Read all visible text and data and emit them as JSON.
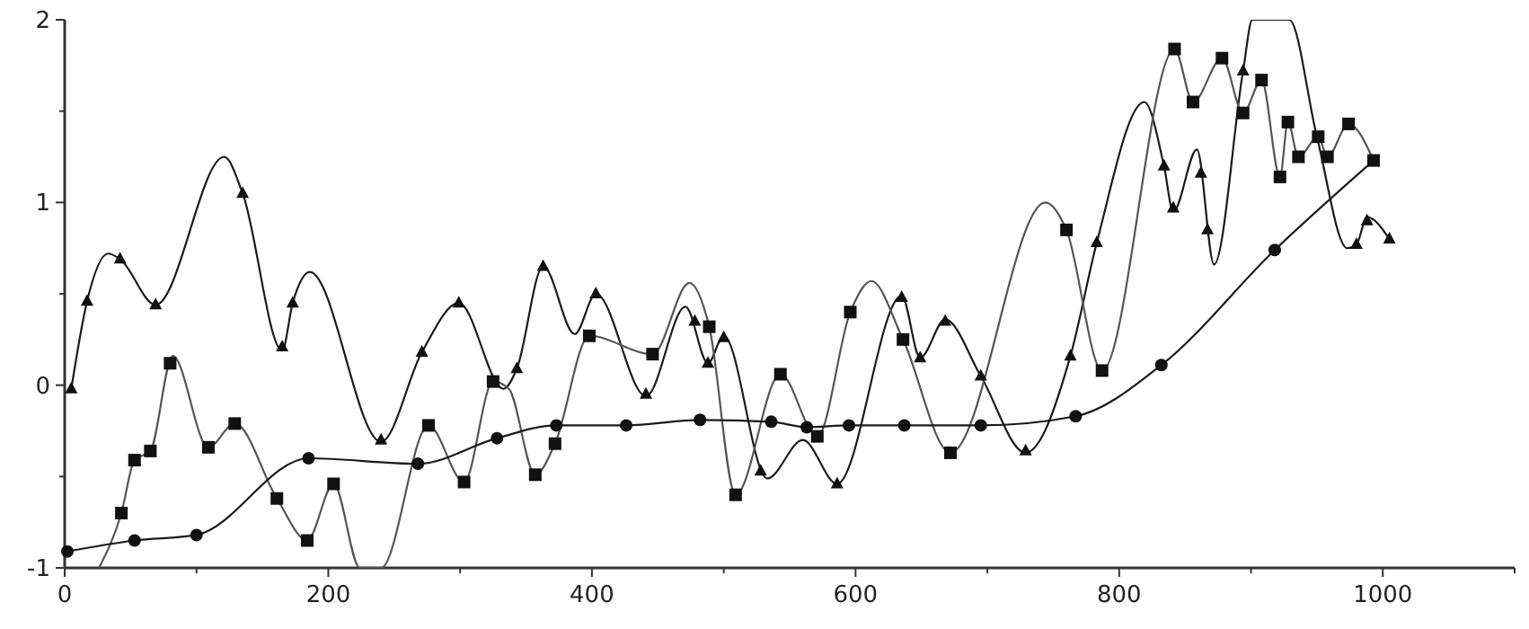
{
  "chart_data": {
    "type": "line",
    "xlim": [
      0,
      1100
    ],
    "ylim": [
      -1,
      2
    ],
    "xticks": [
      0,
      {
        "value": 100,
        "label": null
      },
      200,
      {
        "value": 300,
        "label": null
      },
      400,
      {
        "value": 500,
        "label": null
      },
      600,
      {
        "value": 700,
        "label": null
      },
      800,
      {
        "value": 900,
        "label": null
      },
      1000,
      {
        "value": 1100,
        "label": null
      }
    ],
    "yticks": [
      -1,
      {
        "value": -0.5,
        "label": null
      },
      0,
      {
        "value": 0.5,
        "label": null
      },
      1,
      {
        "value": 1.5,
        "label": null
      },
      2
    ],
    "grid": false,
    "series": [
      {
        "color": "#1a1a1a",
        "marker": "none",
        "x": [
          5,
          17,
          33,
          42,
          69,
          121,
          135,
          165,
          173,
          186,
          240,
          271,
          299,
          333,
          343,
          363,
          387,
          403,
          441,
          471,
          488,
          500,
          533,
          560,
          586,
          635,
          649,
          668,
          695,
          729,
          763,
          783,
          819,
          834,
          841,
          859,
          872,
          894,
          901,
          914,
          929,
          950,
          973,
          980,
          988,
          1005
        ],
        "values": [
          -0.02,
          0.46,
          0.72,
          0.69,
          0.44,
          1.25,
          1.05,
          0.19,
          0.45,
          0.62,
          -0.31,
          0.18,
          0.45,
          -0.02,
          0.09,
          0.65,
          0.28,
          0.5,
          -0.06,
          0.43,
          0.12,
          0.27,
          -0.51,
          -0.3,
          -0.54,
          0.49,
          0.15,
          0.36,
          0.05,
          -0.37,
          0.16,
          0.78,
          1.55,
          1.2,
          0.95,
          1.29,
          0.66,
          1.72,
          2,
          2,
          2,
          1.36,
          0.75,
          0.77,
          0.92,
          0.8
        ]
      },
      {
        "color": "#555555",
        "marker": "none",
        "x": [
          26,
          43,
          53,
          65,
          82,
          109,
          129,
          161,
          184,
          204,
          224,
          240,
          276,
          303,
          325,
          337,
          357,
          372,
          398,
          446,
          474,
          489,
          509,
          543,
          571,
          596,
          612,
          636,
          672,
          744,
          760,
          787,
          842,
          856,
          878,
          894,
          908,
          922,
          928,
          936,
          951,
          958,
          974,
          993
        ],
        "values": [
          -1,
          -0.7,
          -0.41,
          -0.36,
          0.16,
          -0.34,
          -0.21,
          -0.62,
          -0.85,
          -0.54,
          -1,
          -1,
          -0.22,
          -0.53,
          0.02,
          -0.02,
          -0.49,
          -0.32,
          0.27,
          0.17,
          0.56,
          0.32,
          -0.6,
          0.06,
          -0.28,
          0.4,
          0.57,
          0.25,
          -0.37,
          1.0,
          0.85,
          0.08,
          1.84,
          1.55,
          1.79,
          1.49,
          1.67,
          1.14,
          1.44,
          1.25,
          1.36,
          1.25,
          1.43,
          1.23
        ]
      },
      {
        "color": "#1a1a1a",
        "marker": "none",
        "x": [
          2,
          53,
          100,
          185,
          268,
          328,
          373,
          426,
          482,
          536,
          563,
          595,
          637,
          695,
          767,
          832,
          918,
          993
        ],
        "values": [
          -0.91,
          -0.85,
          -0.82,
          -0.4,
          -0.43,
          -0.29,
          -0.22,
          -0.22,
          -0.19,
          -0.2,
          -0.23,
          -0.22,
          -0.22,
          -0.22,
          -0.17,
          0.11,
          0.74,
          1.23
        ]
      },
      {
        "type": "scatter",
        "color": "#111111",
        "marker": "triangle",
        "x": [
          5,
          17,
          42,
          69,
          135,
          165,
          173,
          240,
          271,
          299,
          343,
          363,
          403,
          441,
          478,
          488,
          500,
          528,
          586,
          635,
          649,
          668,
          695,
          729,
          763,
          783,
          834,
          841,
          862,
          867,
          894,
          980,
          988,
          1005
        ],
        "values": [
          -0.02,
          0.46,
          0.69,
          0.44,
          1.05,
          0.21,
          0.45,
          -0.3,
          0.18,
          0.45,
          0.09,
          0.65,
          0.5,
          -0.05,
          0.35,
          0.12,
          0.26,
          -0.47,
          -0.54,
          0.48,
          0.15,
          0.35,
          0.05,
          -0.36,
          0.16,
          0.78,
          1.2,
          0.97,
          1.16,
          0.85,
          1.72,
          0.77,
          0.9,
          0.8
        ]
      },
      {
        "type": "scatter",
        "color": "#111111",
        "marker": "square",
        "x": [
          43,
          53,
          65,
          80,
          109,
          129,
          161,
          184,
          204,
          276,
          303,
          325,
          357,
          372,
          398,
          446,
          489,
          509,
          543,
          571,
          596,
          636,
          672,
          760,
          787,
          842,
          856,
          878,
          894,
          908,
          922,
          928,
          936,
          951,
          958,
          974,
          993
        ],
        "values": [
          -0.7,
          -0.41,
          -0.36,
          0.12,
          -0.34,
          -0.21,
          -0.62,
          -0.85,
          -0.54,
          -0.22,
          -0.53,
          0.02,
          -0.49,
          -0.32,
          0.27,
          0.17,
          0.32,
          -0.6,
          0.06,
          -0.28,
          0.4,
          0.25,
          -0.37,
          0.85,
          0.08,
          1.84,
          1.55,
          1.79,
          1.49,
          1.67,
          1.14,
          1.44,
          1.25,
          1.36,
          1.25,
          1.43,
          1.23
        ]
      },
      {
        "type": "scatter",
        "color": "#111111",
        "marker": "circle",
        "x": [
          2,
          53,
          100,
          185,
          268,
          328,
          373,
          426,
          482,
          536,
          563,
          595,
          637,
          695,
          767,
          832,
          918
        ],
        "values": [
          -0.91,
          -0.85,
          -0.82,
          -0.4,
          -0.43,
          -0.29,
          -0.22,
          -0.22,
          -0.19,
          -0.2,
          -0.23,
          -0.22,
          -0.22,
          -0.22,
          -0.17,
          0.11,
          0.74
        ]
      }
    ]
  }
}
